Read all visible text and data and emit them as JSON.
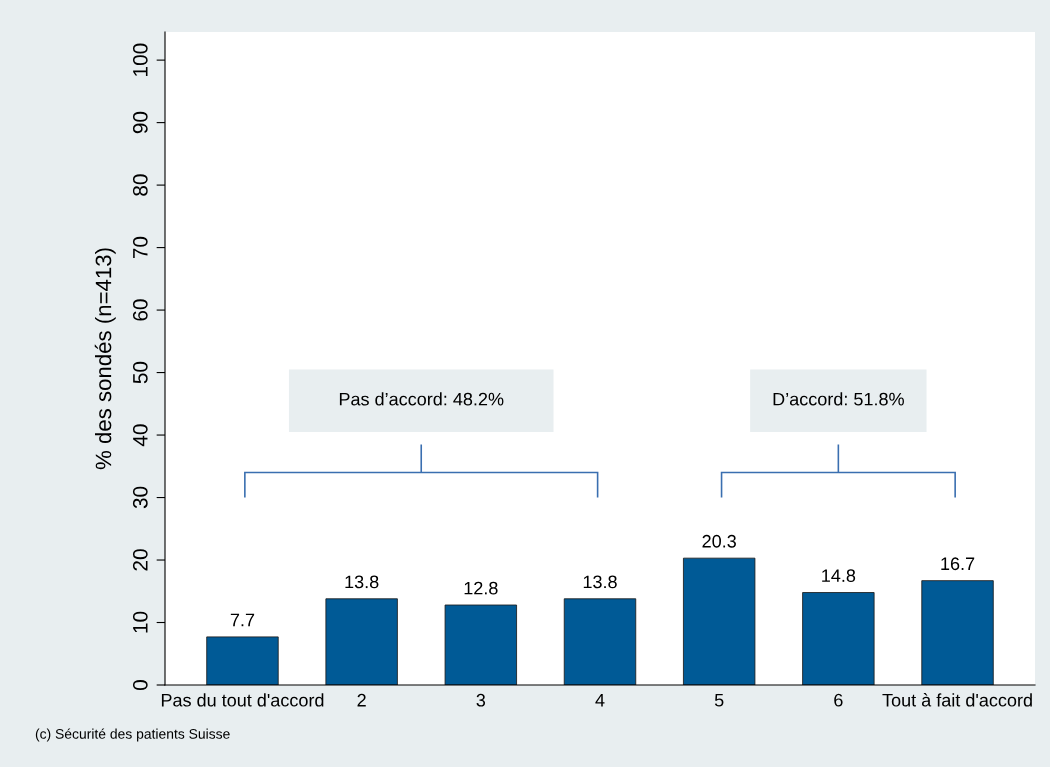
{
  "chart_data": {
    "type": "bar",
    "ylabel": "% des sondés (n=413)",
    "categories": [
      "Pas du tout d'accord",
      "2",
      "3",
      "4",
      "5",
      "6",
      "Tout à fait d'accord"
    ],
    "values": [
      7.7,
      13.8,
      12.8,
      13.8,
      20.3,
      14.8,
      16.7
    ],
    "color": "#005a96",
    "ylim": [
      0,
      104.5
    ],
    "yticks": [
      0,
      10,
      20,
      30,
      40,
      50,
      60,
      70,
      80,
      90,
      100
    ],
    "grid": false,
    "data_labels": true,
    "annotations": [
      "Pas d’accord: 48.2%",
      "D’accord: 51.8%",
      "(c) Sécurité des patients Suisse"
    ]
  }
}
